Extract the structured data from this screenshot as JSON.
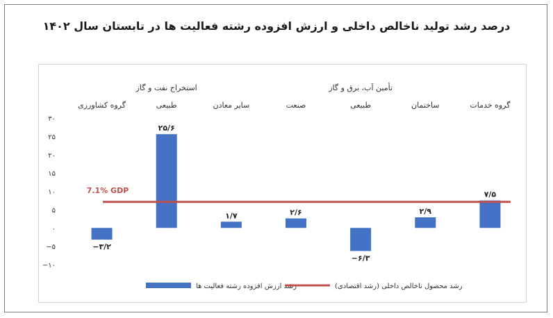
{
  "chart_data": {
    "type": "bar",
    "title": "درصد رشد تولید ناخالص داخلی و ارزش افزوده رشته فعالیت ها در تابستان سال ۱۴۰۲",
    "categories": [
      "گروه کشاورزی",
      "طبیعی",
      "سایر معادن",
      "صنعت",
      "طبیعی",
      "ساختمان",
      "گروه خدمات"
    ],
    "group_labels": [
      {
        "label": "استخراج نفت و گاز",
        "category_index": 1
      },
      {
        "label": "تأمین آب، برق و گاز",
        "category_index": 4
      }
    ],
    "series": [
      {
        "name": "رشد ارزش افزوده رشته فعالیت ها",
        "values": [
          -3.2,
          25.6,
          1.7,
          2.6,
          -6.3,
          2.9,
          7.5
        ],
        "value_labels": [
          "−۳/۲",
          "۲۵/۶",
          "۱/۷",
          "۲/۶",
          "−۶/۳",
          "۲/۹",
          "۷/۵"
        ],
        "color": "#4472c4"
      },
      {
        "name": "رشد محصول ناخالص داخلی (رشد اقتصادی)",
        "value": 7.1,
        "label": "7.1%  GDP",
        "color": "#c0504d"
      }
    ],
    "ylim": [
      -10,
      30
    ],
    "yticks": [
      30,
      25,
      20,
      15,
      10,
      5,
      0,
      -5,
      -10
    ],
    "ytick_labels": [
      "۳۰",
      "۲۵",
      "۲۰",
      "۱۵",
      "۱۰",
      "۵",
      "۰",
      "−۵",
      "−۱۰"
    ],
    "grid": false,
    "legend_position": "bottom"
  }
}
